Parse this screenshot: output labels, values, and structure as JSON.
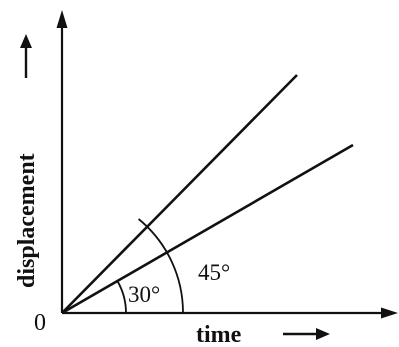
{
  "diagram": {
    "origin_label": "0",
    "x_axis_label": "time",
    "y_axis_label": "displacement",
    "lines": [
      {
        "angle_deg": 45
      },
      {
        "angle_deg": 30
      }
    ],
    "angle_labels": {
      "inner": "30°",
      "outer": "45°"
    },
    "colors": {
      "ink": "#111111",
      "background": "#ffffff"
    }
  }
}
